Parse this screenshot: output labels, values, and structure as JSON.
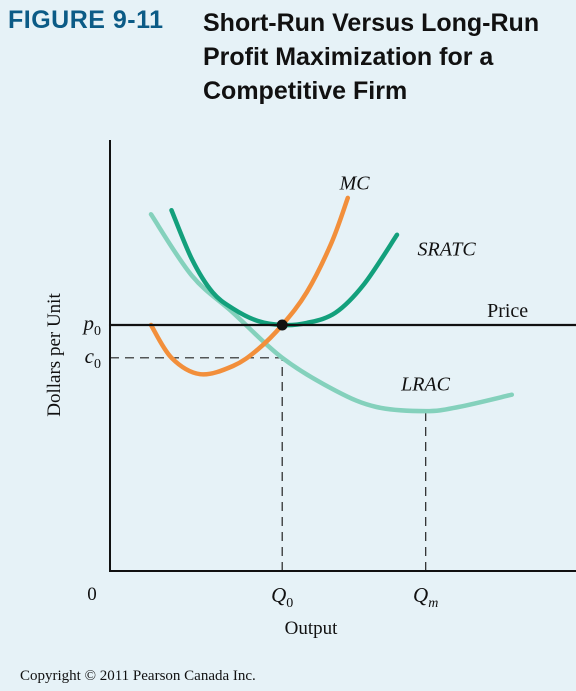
{
  "figure": {
    "label": "FIGURE 9-11",
    "title": "Short-Run Versus Long-Run Profit Maximization for a Competitive Firm"
  },
  "copyright": "Copyright © 2011 Pearson Canada Inc.",
  "chart_data": {
    "type": "line",
    "xlabel": "Output",
    "ylabel": "Dollars per Unit",
    "origin_label": "0",
    "xlim": [
      0,
      100
    ],
    "ylim": [
      0,
      100
    ],
    "grid": false,
    "x_ticks": [
      {
        "label": "Q",
        "sub": "0",
        "x": 42
      },
      {
        "label": "Q",
        "sub": "m",
        "x": 77
      }
    ],
    "y_ticks": [
      {
        "label": "p",
        "sub": "0",
        "y": 60
      },
      {
        "label": "c",
        "sub": "0",
        "y": 52
      }
    ],
    "series": [
      {
        "name": "LRAC",
        "color": "#84d1bc",
        "x": [
          10,
          20,
          30,
          42,
          55,
          65,
          77,
          85,
          98
        ],
        "y": [
          87,
          72,
          63,
          52,
          44,
          40,
          39,
          40,
          43
        ]
      },
      {
        "name": "SRATC",
        "color": "#13a07c",
        "x": [
          15,
          20,
          25,
          30,
          36,
          42,
          48,
          55,
          62,
          70
        ],
        "y": [
          88,
          76,
          68,
          64,
          61,
          60,
          60.5,
          63,
          70,
          82
        ]
      },
      {
        "name": "MC",
        "color": "#f28f3b",
        "x": [
          10,
          15,
          22,
          30,
          36,
          42,
          48,
          54,
          58
        ],
        "y": [
          60,
          52,
          48,
          50,
          54,
          60,
          68,
          80,
          91
        ]
      },
      {
        "name": "Price",
        "color": "#111111",
        "x": [
          0,
          120
        ],
        "y": [
          60,
          60
        ]
      }
    ],
    "points": [
      {
        "x": 42,
        "y": 60,
        "color": "#111111"
      }
    ],
    "guides": [
      {
        "from": [
          0,
          52
        ],
        "to": [
          42,
          52
        ]
      },
      {
        "from": [
          42,
          0
        ],
        "to": [
          42,
          52
        ]
      },
      {
        "from": [
          77,
          0
        ],
        "to": [
          77,
          39
        ]
      }
    ],
    "annotations": [
      {
        "text": "MC",
        "x": 56,
        "y": 93,
        "series": "MC"
      },
      {
        "text": "SRATC",
        "x": 75,
        "y": 77,
        "series": "SRATC"
      },
      {
        "text": "LRAC",
        "x": 71,
        "y": 44,
        "series": "LRAC"
      },
      {
        "text": "Price",
        "x": 102,
        "y": 62,
        "series": "Price"
      }
    ]
  }
}
